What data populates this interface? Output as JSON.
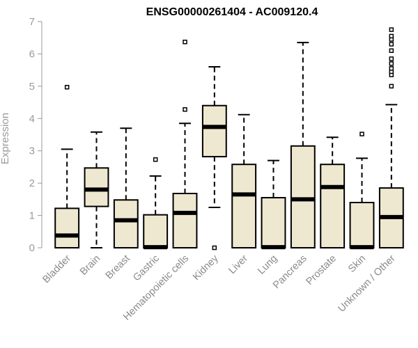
{
  "chart_data": {
    "type": "box",
    "title": "ENSG00000261404 - AC009120.4",
    "ylabel": "Expression",
    "xlabel": "",
    "ylim": [
      0,
      7
    ],
    "yticks": [
      "0",
      "1",
      "2",
      "3",
      "4",
      "5",
      "6",
      "7"
    ],
    "grid": false,
    "legend": "none",
    "box_fill": "#efe8d0",
    "box_stroke": "#000000",
    "categories": [
      "Bladder",
      "Brain",
      "Breast",
      "Gastric",
      "Hematopoietic cells",
      "Kidney",
      "Liver",
      "Lung",
      "Pancreas",
      "Prostate",
      "Skin",
      "Unknown / Other"
    ],
    "boxes": [
      {
        "low": 0.0,
        "q1": 0.0,
        "median": 0.38,
        "q3": 1.22,
        "high": 3.05,
        "outliers": [
          4.97
        ]
      },
      {
        "low": 0.0,
        "q1": 1.28,
        "median": 1.8,
        "q3": 2.47,
        "high": 3.58,
        "outliers": []
      },
      {
        "low": 0.0,
        "q1": 0.0,
        "median": 0.85,
        "q3": 1.48,
        "high": 3.7,
        "outliers": []
      },
      {
        "low": 0.0,
        "q1": 0.0,
        "median": 0.02,
        "q3": 1.02,
        "high": 2.22,
        "outliers": [
          2.73
        ]
      },
      {
        "low": 0.0,
        "q1": 0.0,
        "median": 1.08,
        "q3": 1.68,
        "high": 3.85,
        "outliers": [
          4.28,
          6.37
        ]
      },
      {
        "low": 1.25,
        "q1": 2.82,
        "median": 3.74,
        "q3": 4.4,
        "high": 5.6,
        "outliers": [
          0.0
        ]
      },
      {
        "low": 0.0,
        "q1": 0.0,
        "median": 1.65,
        "q3": 2.58,
        "high": 4.12,
        "outliers": []
      },
      {
        "low": 0.0,
        "q1": 0.0,
        "median": 0.02,
        "q3": 1.55,
        "high": 2.7,
        "outliers": []
      },
      {
        "low": 0.0,
        "q1": 0.0,
        "median": 1.5,
        "q3": 3.15,
        "high": 6.35,
        "outliers": []
      },
      {
        "low": 0.0,
        "q1": 0.0,
        "median": 1.88,
        "q3": 2.58,
        "high": 3.42,
        "outliers": []
      },
      {
        "low": 0.0,
        "q1": 0.0,
        "median": 0.02,
        "q3": 1.4,
        "high": 2.77,
        "outliers": [
          3.52
        ]
      },
      {
        "low": 0.0,
        "q1": 0.0,
        "median": 0.95,
        "q3": 1.85,
        "high": 4.43,
        "outliers": [
          5.0,
          5.35,
          5.45,
          5.55,
          5.7,
          5.85,
          6.1,
          6.3,
          6.45,
          6.55,
          6.75
        ]
      }
    ]
  }
}
